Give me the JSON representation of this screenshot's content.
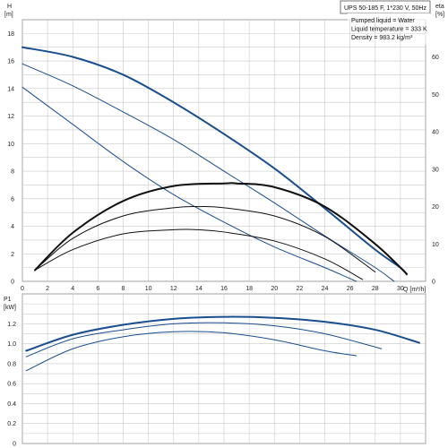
{
  "chart_data": [
    {
      "type": "line",
      "panel": "head-efficiency",
      "xlabel": "Q [m³/h]",
      "ylabel_left_symbol": "H",
      "ylabel_left_unit": "[m]",
      "ylabel_right_symbol": "eta",
      "ylabel_right_unit": "[%]",
      "xlim": [
        0,
        32
      ],
      "ylim_left": [
        0,
        19
      ],
      "ylim_right": [
        0,
        70
      ],
      "x_ticks": [
        "0",
        "2",
        "4",
        "6",
        "8",
        "10",
        "12",
        "14",
        "16",
        "18",
        "20",
        "22",
        "24",
        "26",
        "28",
        "30"
      ],
      "y_ticks_left": [
        "0",
        "2",
        "4",
        "6",
        "8",
        "10",
        "12",
        "14",
        "16",
        "18"
      ],
      "y_ticks_right": [
        "0",
        "10",
        "20",
        "30",
        "40",
        "50",
        "60"
      ],
      "grid": true,
      "info_box": {
        "title": "UPS 50-185 F, 1*230 V, 50Hz",
        "lines": [
          "Pumped liquid = Water",
          "Liquid temperature = 333 K",
          "Density = 983.2 kg/m³"
        ]
      },
      "series": [
        {
          "axis": "left",
          "kind": "head",
          "weight": "bold",
          "x": [
            0,
            4,
            8,
            12,
            16,
            20,
            24,
            28,
            30,
            30.5
          ],
          "y": [
            17.0,
            16.3,
            15.0,
            13.0,
            10.7,
            8.2,
            5.3,
            2.3,
            1.0,
            0.5
          ]
        },
        {
          "axis": "left",
          "kind": "head",
          "weight": "normal",
          "x": [
            0,
            4,
            8,
            12,
            16,
            20,
            24,
            28,
            29.5
          ],
          "y": [
            15.8,
            14.2,
            12.3,
            10.3,
            8.0,
            5.7,
            3.3,
            1.0,
            0
          ]
        },
        {
          "axis": "left",
          "kind": "head",
          "weight": "normal",
          "x": [
            0,
            4,
            8,
            12,
            16,
            20,
            24,
            26.5
          ],
          "y": [
            14.1,
            11.4,
            8.7,
            6.3,
            4.3,
            2.5,
            1.0,
            0
          ]
        },
        {
          "axis": "right",
          "kind": "efficiency",
          "weight": "bold",
          "x": [
            1,
            4,
            8,
            12,
            16,
            17,
            20,
            24,
            28,
            30.5
          ],
          "y": [
            3,
            13,
            21.5,
            25.5,
            26.2,
            26.2,
            25.2,
            20,
            10,
            2
          ]
        },
        {
          "axis": "right",
          "kind": "efficiency",
          "weight": "normal",
          "x": [
            1,
            4,
            8,
            12,
            14,
            16,
            20,
            24,
            28
          ],
          "y": [
            3,
            11.5,
            17.5,
            19.7,
            20,
            19.7,
            17.5,
            12,
            2.5
          ]
        },
        {
          "axis": "right",
          "kind": "efficiency",
          "weight": "normal",
          "x": [
            1,
            4,
            8,
            12,
            14,
            16,
            20,
            24,
            27
          ],
          "y": [
            3,
            8.5,
            12.7,
            13.8,
            13.8,
            13.2,
            10.8,
            6,
            0.5
          ]
        }
      ]
    },
    {
      "type": "line",
      "panel": "power",
      "ylabel_left_symbol": "P1",
      "ylabel_left_unit": "[kW]",
      "xlim": [
        0,
        32
      ],
      "ylim": [
        0,
        1.5
      ],
      "y_ticks": [
        "0",
        "0.2",
        "0.4",
        "0.6",
        "0.8",
        "1.0",
        "1.2"
      ],
      "grid": true,
      "series": [
        {
          "weight": "bold",
          "x": [
            0.3,
            4,
            8,
            12,
            16,
            20,
            24,
            28,
            31.5
          ],
          "y": [
            0.93,
            1.09,
            1.19,
            1.25,
            1.27,
            1.26,
            1.22,
            1.14,
            1.01
          ]
        },
        {
          "weight": "normal",
          "x": [
            0.3,
            4,
            8,
            12,
            16,
            20,
            24,
            28.5
          ],
          "y": [
            0.87,
            1.05,
            1.14,
            1.2,
            1.21,
            1.18,
            1.1,
            0.95
          ]
        },
        {
          "weight": "normal",
          "x": [
            0.3,
            4,
            8,
            12,
            16,
            20,
            24,
            26.5
          ],
          "y": [
            0.73,
            0.95,
            1.07,
            1.12,
            1.11,
            1.04,
            0.93,
            0.88
          ]
        }
      ]
    }
  ]
}
